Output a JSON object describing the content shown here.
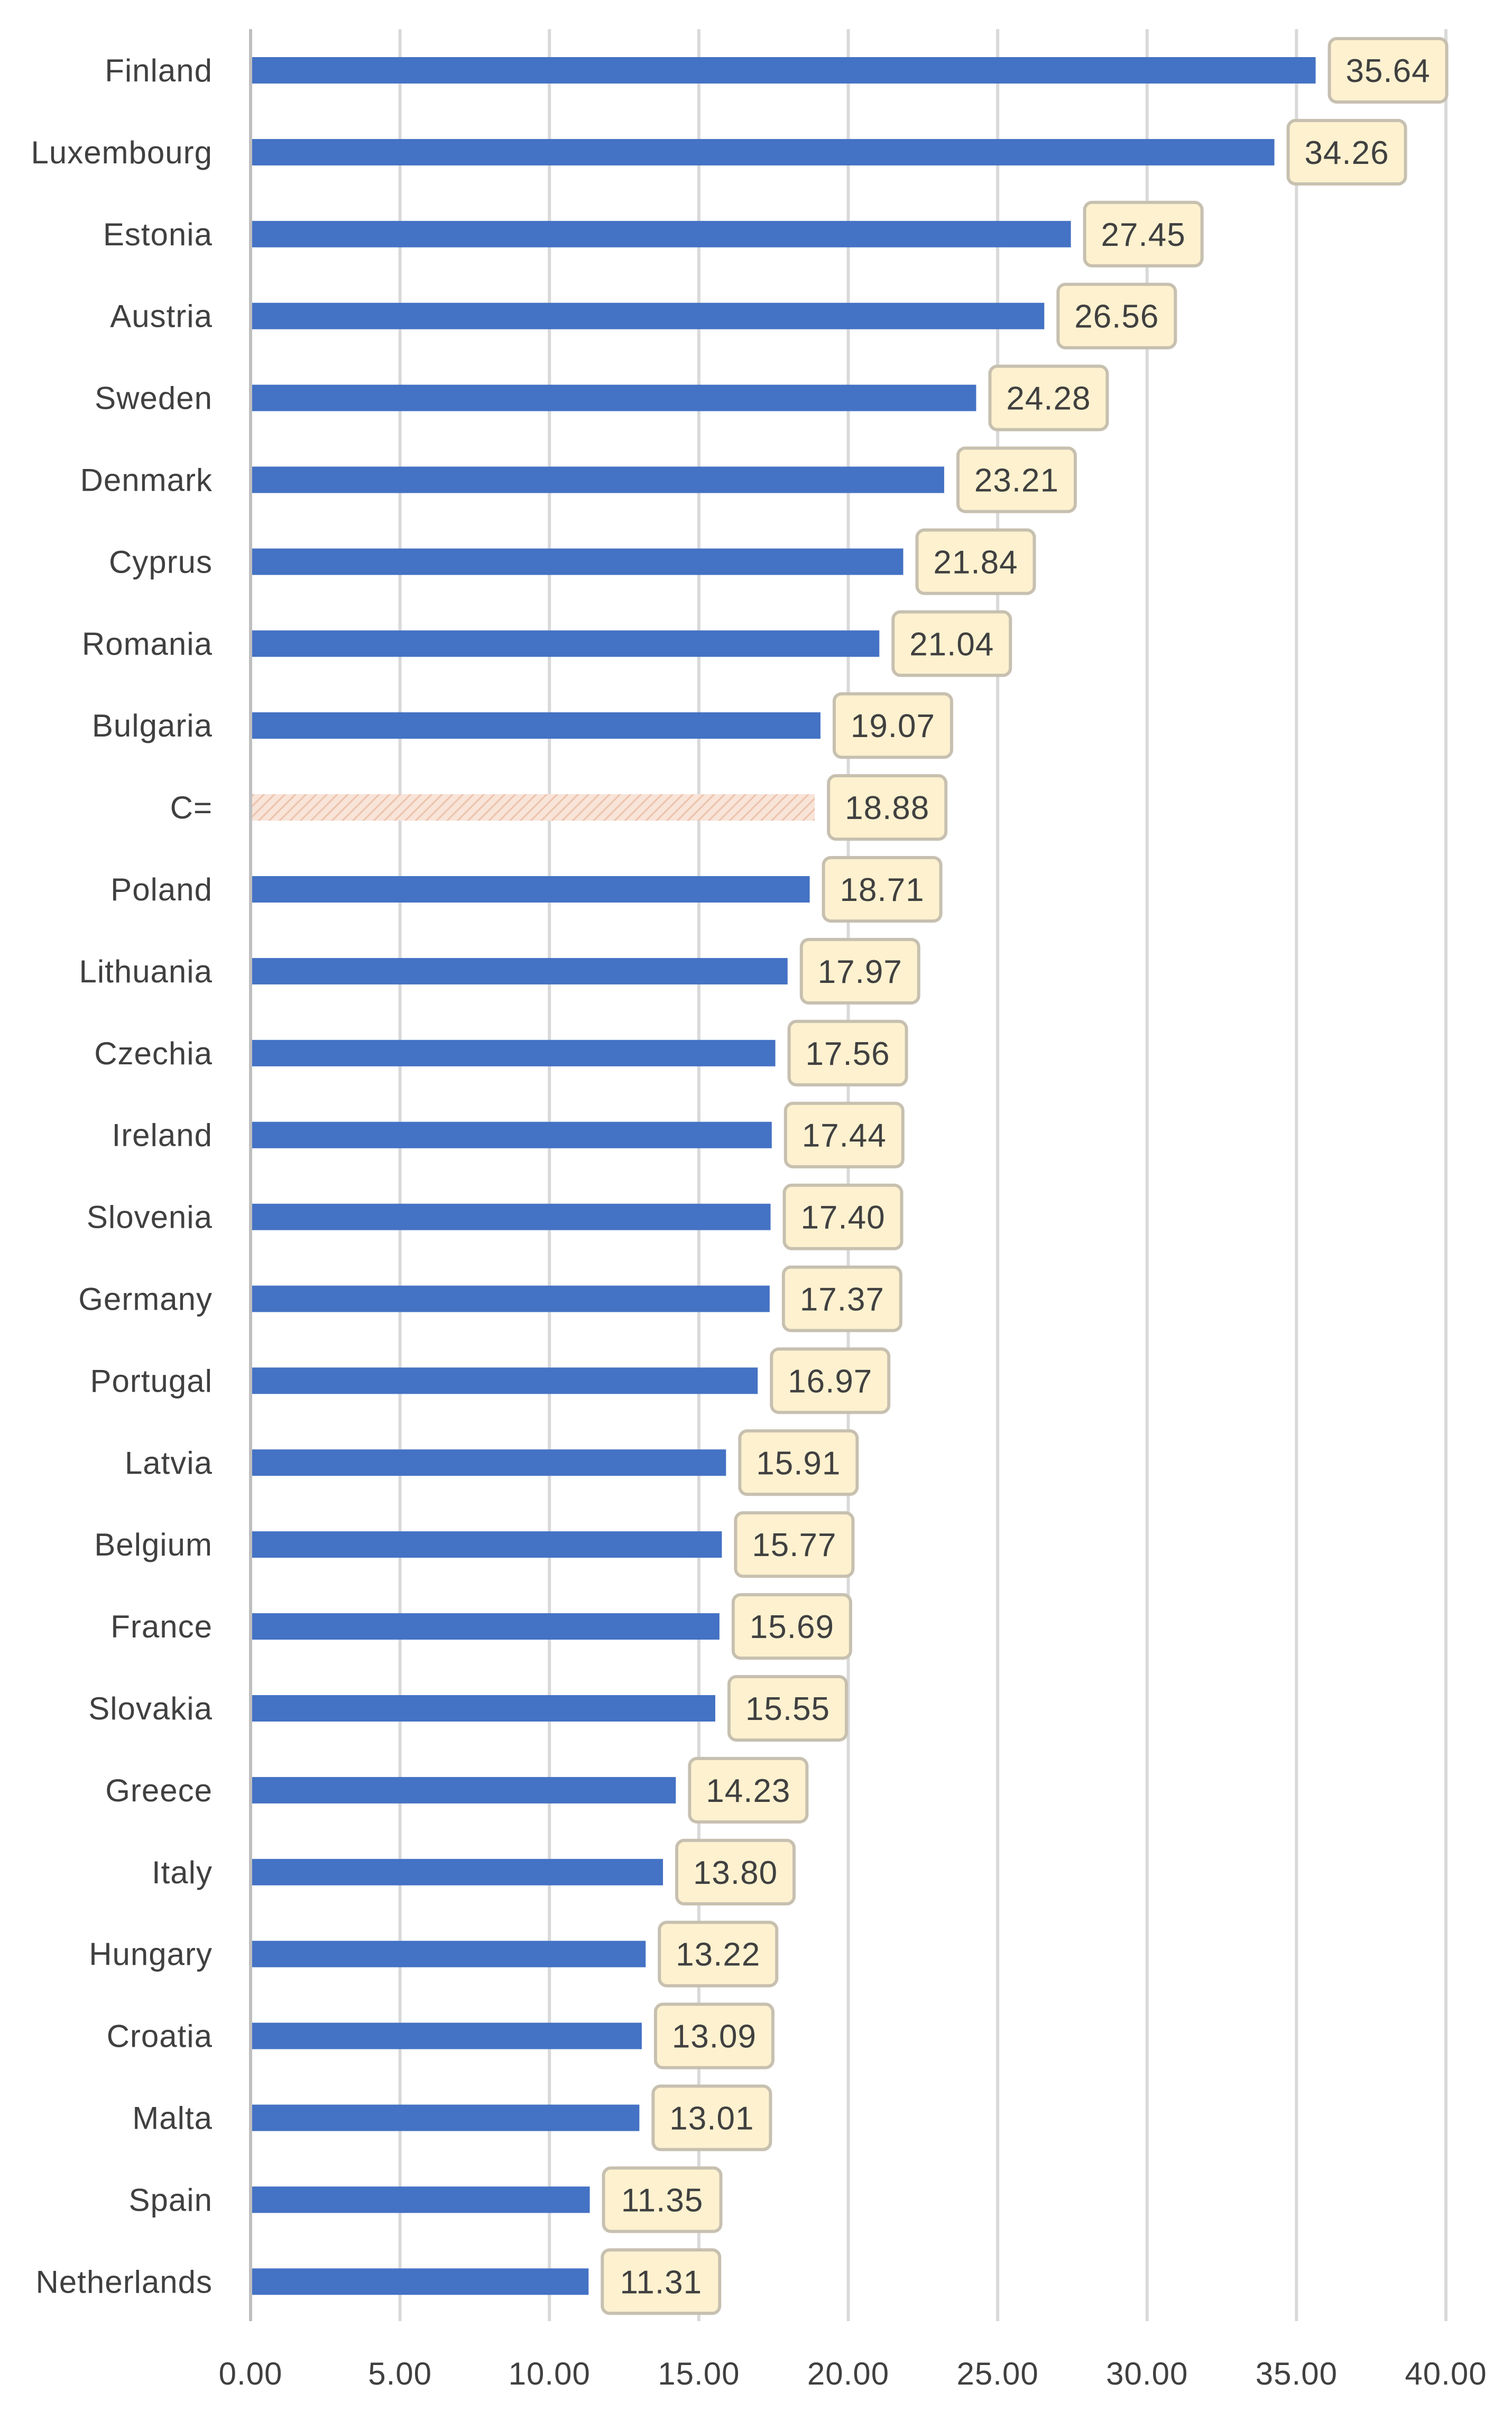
{
  "chart_data": {
    "type": "bar",
    "orientation": "horizontal",
    "title": "",
    "xlabel": "",
    "ylabel": "",
    "xlim": [
      0,
      40
    ],
    "x_ticks": [
      "0.00",
      "5.00",
      "10.00",
      "15.00",
      "20.00",
      "25.00",
      "30.00",
      "35.00",
      "40.00"
    ],
    "x_tick_values": [
      0,
      5,
      10,
      15,
      20,
      25,
      30,
      35,
      40
    ],
    "grid": "vertical",
    "bar_color": "#4472c4",
    "highlight_color": "#f4d8c8",
    "label_box_fill": "#fdf1cf",
    "label_box_stroke": "#c7c0b0",
    "grid_color": "#d9d9d9",
    "categories": [
      "Finland",
      "Luxembourg",
      "Estonia",
      "Austria",
      "Sweden",
      "Denmark",
      "Cyprus",
      "Romania",
      "Bulgaria",
      "C=",
      "Poland",
      "Lithuania",
      "Czechia",
      "Ireland",
      "Slovenia",
      "Germany",
      "Portugal",
      "Latvia",
      "Belgium",
      "France",
      "Slovakia",
      "Greece",
      "Italy",
      "Hungary",
      "Croatia",
      "Malta",
      "Spain",
      "Netherlands"
    ],
    "values": [
      35.64,
      34.26,
      27.45,
      26.56,
      24.28,
      23.21,
      21.84,
      21.04,
      19.07,
      18.88,
      18.71,
      17.97,
      17.56,
      17.44,
      17.4,
      17.37,
      16.97,
      15.91,
      15.77,
      15.69,
      15.55,
      14.23,
      13.8,
      13.22,
      13.09,
      13.01,
      11.35,
      11.31
    ],
    "value_labels": [
      "35.64",
      "34.26",
      "27.45",
      "26.56",
      "24.28",
      "23.21",
      "21.84",
      "21.04",
      "19.07",
      "18.88",
      "18.71",
      "17.97",
      "17.56",
      "17.44",
      "17.40",
      "17.37",
      "16.97",
      "15.91",
      "15.77",
      "15.69",
      "15.55",
      "14.23",
      "13.80",
      "13.22",
      "13.09",
      "13.01",
      "11.35",
      "11.31"
    ],
    "highlighted_category": "C="
  }
}
